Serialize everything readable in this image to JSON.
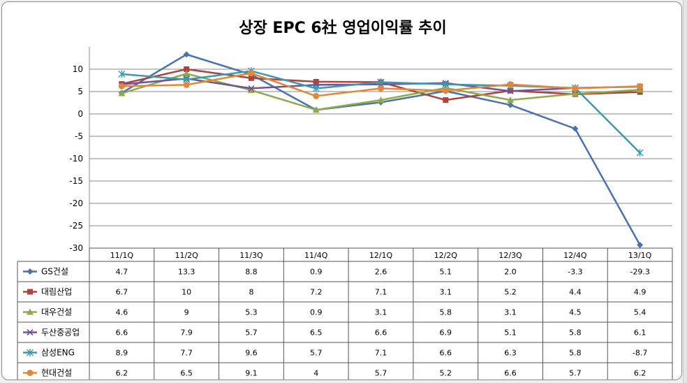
{
  "chart_data": {
    "type": "line",
    "title": "상장 EPC 6社 영업이익률 추이",
    "categories": [
      "11/1Q",
      "11/2Q",
      "11/3Q",
      "11/4Q",
      "12/1Q",
      "12/2Q",
      "12/3Q",
      "12/4Q",
      "13/1Q"
    ],
    "ylim": [
      -30,
      15
    ],
    "yticks": [
      10,
      5,
      0,
      -5,
      -10,
      -15,
      -20,
      -25,
      -30
    ],
    "grid": true,
    "legend": "data-table-left",
    "series": [
      {
        "name": "GS건설",
        "color": "#4a72ac",
        "marker": "diamond",
        "values": [
          4.7,
          13.3,
          8.8,
          0.9,
          2.6,
          5.1,
          2.0,
          -3.3,
          -29.3
        ],
        "labels": [
          "4.7",
          "13.3",
          "8.8",
          "0.9",
          "2.6",
          "5.1",
          "2.0",
          "-3.3",
          "-29.3"
        ]
      },
      {
        "name": "대림산업",
        "color": "#b0423d",
        "marker": "square",
        "values": [
          6.7,
          10,
          8,
          7.2,
          7.1,
          3.1,
          5.2,
          4.4,
          4.9
        ],
        "labels": [
          "6.7",
          "10",
          "8",
          "7.2",
          "7.1",
          "3.1",
          "5.2",
          "4.4",
          "4.9"
        ]
      },
      {
        "name": "대우건설",
        "color": "#8faa4a",
        "marker": "triangle",
        "values": [
          4.6,
          9,
          5.3,
          0.9,
          3.1,
          5.8,
          3.1,
          4.5,
          5.4
        ],
        "labels": [
          "4.6",
          "9",
          "5.3",
          "0.9",
          "3.1",
          "5.8",
          "3.1",
          "4.5",
          "5.4"
        ]
      },
      {
        "name": "두산중공업",
        "color": "#6f5394",
        "marker": "x",
        "values": [
          6.6,
          7.9,
          5.7,
          6.5,
          6.6,
          6.9,
          5.1,
          5.8,
          6.1
        ],
        "labels": [
          "6.6",
          "7.9",
          "5.7",
          "6.5",
          "6.6",
          "6.9",
          "5.1",
          "5.8",
          "6.1"
        ]
      },
      {
        "name": "삼성ENG",
        "color": "#3c9aae",
        "marker": "star",
        "values": [
          8.9,
          7.7,
          9.6,
          5.7,
          7.1,
          6.6,
          6.3,
          5.8,
          -8.7
        ],
        "labels": [
          "8.9",
          "7.7",
          "9.6",
          "5.7",
          "7.1",
          "6.6",
          "6.3",
          "5.8",
          "-8.7"
        ]
      },
      {
        "name": "현대건설",
        "color": "#e0883c",
        "marker": "circle",
        "values": [
          6.2,
          6.5,
          9.1,
          4,
          5.7,
          5.2,
          6.6,
          5.7,
          6.2
        ],
        "labels": [
          "6.2",
          "6.5",
          "9.1",
          "4",
          "5.7",
          "5.2",
          "6.6",
          "5.7",
          "6.2"
        ]
      }
    ]
  }
}
